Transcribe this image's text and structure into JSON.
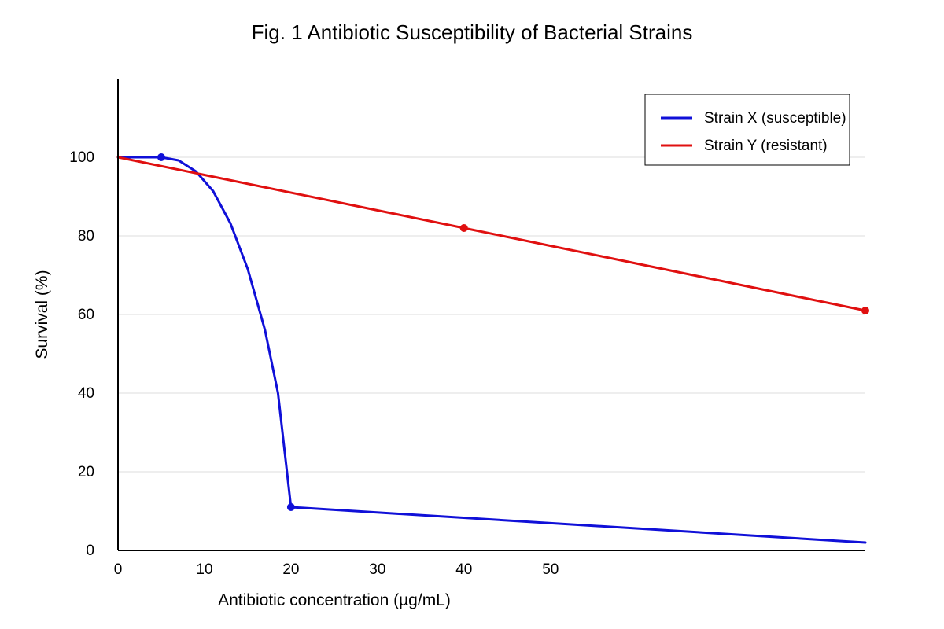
{
  "chart_data": {
    "type": "line",
    "title": "Fig. 1 Antibiotic Susceptibility of Bacterial Strains",
    "xlabel": "Antibiotic concentration (µg/mL)",
    "ylabel": "Survival (%)",
    "x_ticks": [
      0,
      10,
      20,
      30,
      40,
      50
    ],
    "y_ticks": [
      0,
      20,
      40,
      60,
      80,
      100
    ],
    "xlim": [
      0,
      86.4
    ],
    "ylim": [
      0,
      120
    ],
    "grid": true,
    "legend_position": "top-right",
    "series": [
      {
        "name": "Strain X (susceptible)",
        "color": "#1010d8",
        "line": [
          [
            0,
            100
          ],
          [
            5,
            100
          ],
          [
            7,
            99.2
          ],
          [
            9,
            96.4
          ],
          [
            11,
            91.4
          ],
          [
            13,
            83.2
          ],
          [
            15,
            71.6
          ],
          [
            17,
            56.0
          ],
          [
            18.5,
            40.0
          ],
          [
            20,
            11
          ]
        ],
        "line_tail": [
          [
            20,
            11
          ],
          [
            86.4,
            2
          ]
        ],
        "markers": [
          [
            5,
            100
          ],
          [
            20,
            11
          ]
        ]
      },
      {
        "name": "Strain Y (resistant)",
        "color": "#e01010",
        "line": [
          [
            0,
            100
          ],
          [
            40,
            82
          ],
          [
            86.4,
            61
          ]
        ],
        "markers": [
          [
            40,
            82
          ],
          [
            86.4,
            61
          ]
        ]
      }
    ]
  }
}
